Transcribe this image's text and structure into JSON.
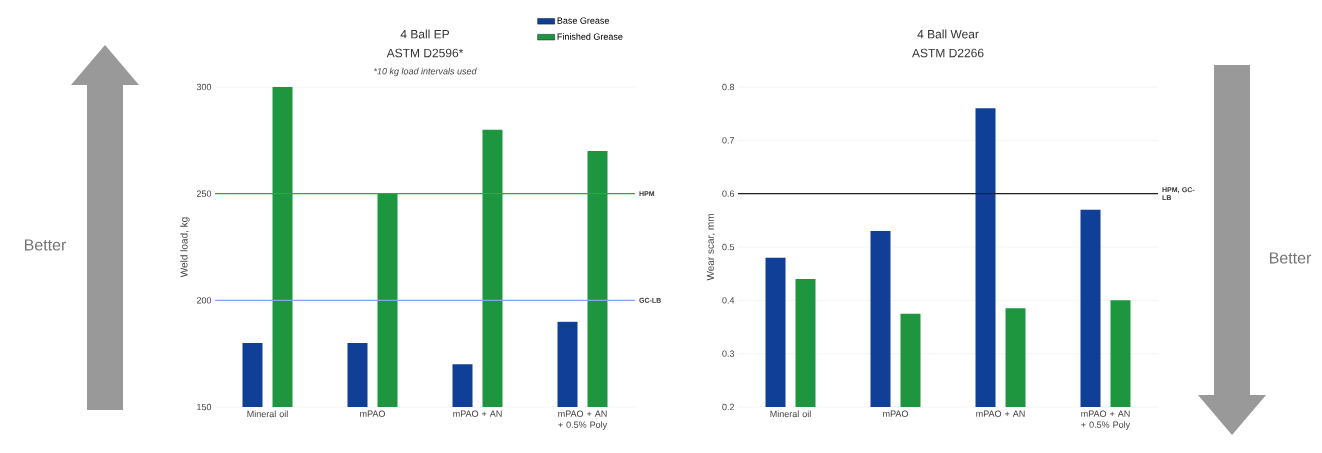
{
  "chart_data": [
    {
      "type": "bar",
      "title": "4 Ball EP",
      "subtitle": "ASTM D2596*",
      "ylabel": "Weld load, kg",
      "annotations": [
        "*10 kg load intervals used",
        "Better"
      ],
      "categories": [
        "Mineral oil",
        "mPAO",
        "mPAO + AN",
        "mPAO + AN + 0.5% Poly"
      ],
      "series": [
        {
          "name": "Base Grease",
          "color": "#0f3f96",
          "values": [
            180,
            180,
            170,
            190
          ]
        },
        {
          "name": "Finished Grease",
          "color": "#1e9640",
          "values": [
            300,
            250,
            280,
            270
          ]
        }
      ],
      "ylim": [
        150,
        300
      ],
      "yticks": [
        150,
        200,
        250,
        300
      ],
      "grid": "y",
      "legend": "top right",
      "ref_lines": [
        {
          "axis": "y",
          "value": 250,
          "label": "HPM",
          "color": "#2aa84a"
        },
        {
          "axis": "y",
          "value": 200,
          "label": "GC-LB",
          "color": "#7fa6f0"
        }
      ]
    },
    {
      "type": "bar",
      "title": "4 Ball Wear",
      "subtitle": "ASTM D2266",
      "ylabel": "Wear scar, mm",
      "annotations": [
        "Better"
      ],
      "categories": [
        "Mineral oil",
        "mPAO",
        "mPAO + AN",
        "mPAO + AN + 0.5% Poly"
      ],
      "series": [
        {
          "color": "#0f3f96",
          "values": [
            0.48,
            0.53,
            0.76,
            0.57
          ]
        },
        {
          "color": "#1e9640",
          "values": [
            0.44,
            0.375,
            0.385,
            0.4
          ]
        }
      ],
      "ylim": [
        0.2,
        0.8
      ],
      "yticks": [
        0.2,
        0.3,
        0.4,
        0.5,
        0.6,
        0.7,
        0.8
      ],
      "grid": "y",
      "ref_lines": [
        {
          "axis": "y",
          "value": 0.6,
          "label": "HPM, GC-LB",
          "color": "#222222"
        }
      ]
    }
  ]
}
